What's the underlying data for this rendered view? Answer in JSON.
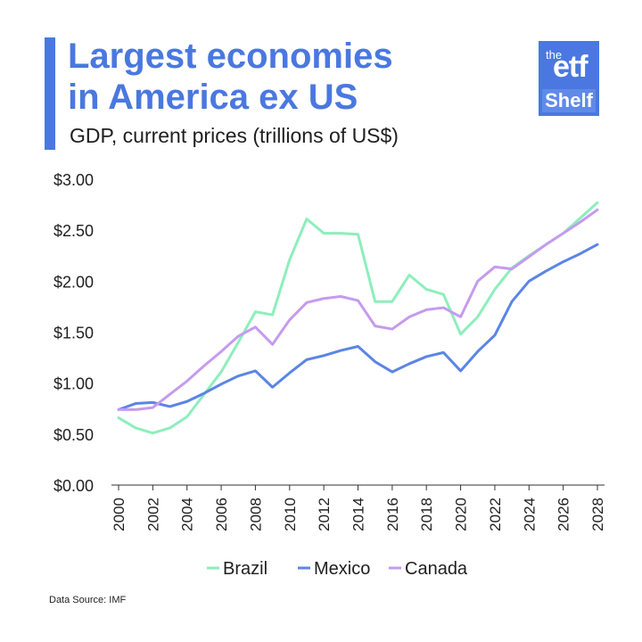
{
  "header": {
    "title_line1": "Largest economies",
    "title_line2": "in America ex US",
    "subtitle": "GDP, current prices (trillions of US$)"
  },
  "logo": {
    "the": "the",
    "etf": "etf",
    "shelf": "Shelf"
  },
  "source": "Data Source: IMF",
  "colors": {
    "accent": "#4a78e0",
    "brazil": "#8eeebc",
    "mexico": "#5b85e6",
    "canada": "#c59bee",
    "axis": "#333333"
  },
  "chart_data": {
    "type": "line",
    "title": "Largest economies in America ex US",
    "subtitle": "GDP, current prices (trillions of US$)",
    "xlabel": "",
    "ylabel": "",
    "ylim": [
      0,
      3
    ],
    "xlim": [
      2000,
      2028
    ],
    "y_ticks": [
      0,
      0.5,
      1,
      1.5,
      2,
      2.5,
      3
    ],
    "y_tick_labels": [
      "$0.00",
      "$0.50",
      "$1.00",
      "$1.50",
      "$2.00",
      "$2.50",
      "$3.00"
    ],
    "x_ticks": [
      2000,
      2002,
      2004,
      2006,
      2008,
      2010,
      2012,
      2014,
      2016,
      2018,
      2020,
      2022,
      2024,
      2026,
      2028
    ],
    "x_tick_labels": [
      "2000",
      "2002",
      "2004",
      "2006",
      "2008",
      "2010",
      "2012",
      "2014",
      "2016",
      "2018",
      "2020",
      "2022",
      "2024",
      "2026",
      "2028"
    ],
    "grid": false,
    "legend_position": "bottom",
    "x": [
      2000,
      2001,
      2002,
      2003,
      2004,
      2005,
      2006,
      2007,
      2008,
      2009,
      2010,
      2011,
      2012,
      2013,
      2014,
      2015,
      2016,
      2017,
      2018,
      2019,
      2020,
      2021,
      2022,
      2023,
      2024,
      2025,
      2026,
      2027,
      2028
    ],
    "series": [
      {
        "name": "Brazil",
        "color": "#8eeebc",
        "values": [
          0.66,
          0.56,
          0.51,
          0.56,
          0.67,
          0.89,
          1.11,
          1.4,
          1.7,
          1.67,
          2.21,
          2.61,
          2.47,
          2.47,
          2.46,
          1.8,
          1.8,
          2.06,
          1.92,
          1.87,
          1.48,
          1.65,
          1.92,
          2.13,
          2.25,
          2.36,
          2.47,
          2.62,
          2.77
        ]
      },
      {
        "name": "Mexico",
        "color": "#5b85e6",
        "values": [
          0.74,
          0.8,
          0.81,
          0.77,
          0.82,
          0.9,
          0.99,
          1.07,
          1.12,
          0.96,
          1.1,
          1.23,
          1.27,
          1.32,
          1.36,
          1.21,
          1.11,
          1.19,
          1.26,
          1.3,
          1.12,
          1.31,
          1.47,
          1.8,
          2.0,
          2.1,
          2.19,
          2.27,
          2.36
        ]
      },
      {
        "name": "Canada",
        "color": "#c59bee",
        "values": [
          0.74,
          0.74,
          0.76,
          0.89,
          1.02,
          1.17,
          1.31,
          1.46,
          1.55,
          1.38,
          1.62,
          1.79,
          1.83,
          1.85,
          1.81,
          1.56,
          1.53,
          1.65,
          1.72,
          1.74,
          1.65,
          2.0,
          2.14,
          2.12,
          2.24,
          2.36,
          2.47,
          2.58,
          2.7
        ]
      }
    ]
  }
}
